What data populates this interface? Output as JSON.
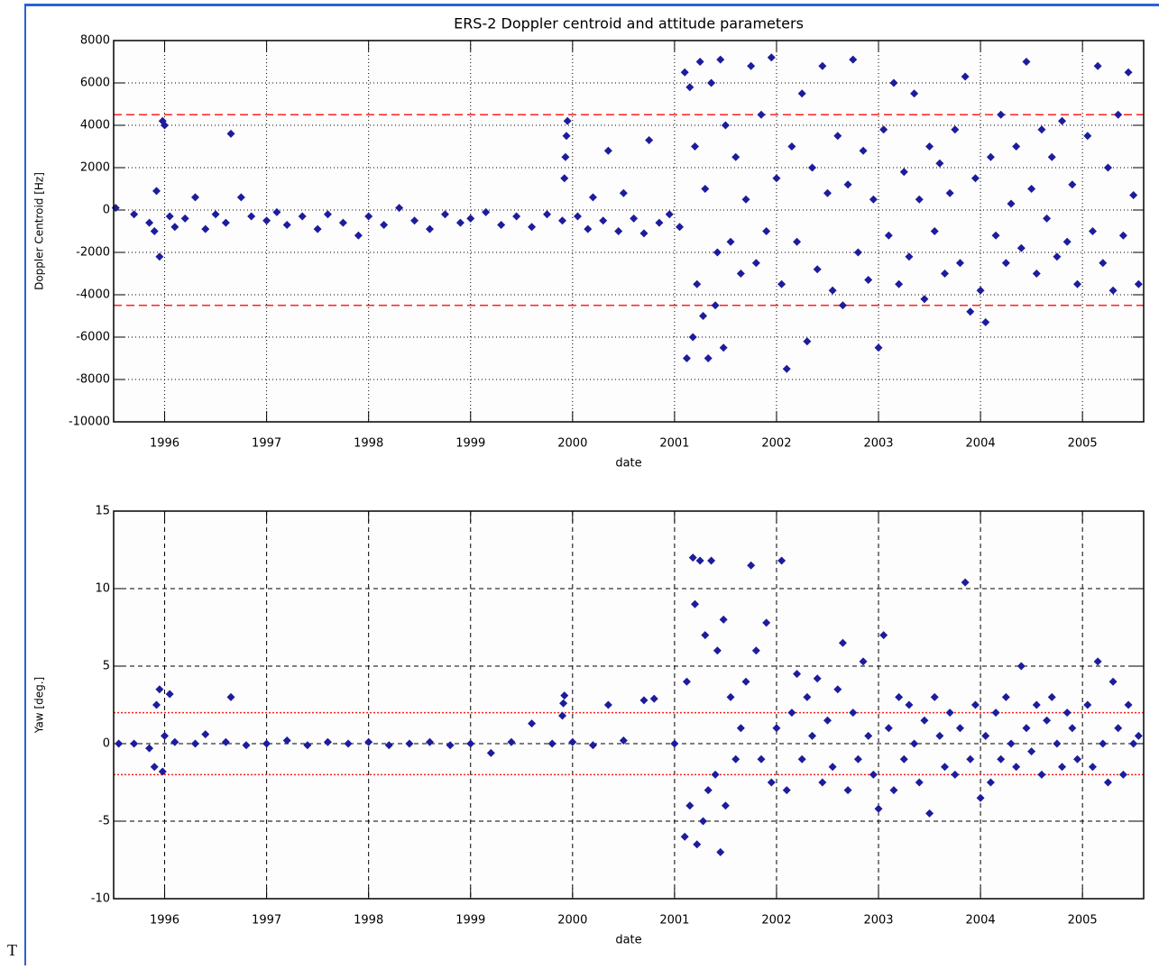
{
  "chart_data": [
    {
      "type": "scatter",
      "title": "ERS-2 Doppler centroid and attitude parameters",
      "xlabel": "date",
      "ylabel": "Doppler Centroid [Hz]",
      "x": [
        1995.52,
        1995.7,
        1995.85,
        1995.9,
        1995.92,
        1995.95,
        1995.98,
        1996.0,
        1996.05,
        1996.1,
        1996.2,
        1996.3,
        1996.4,
        1996.5,
        1996.6,
        1996.65,
        1996.75,
        1996.85,
        1997.0,
        1997.1,
        1997.2,
        1997.35,
        1997.5,
        1997.6,
        1997.75,
        1997.9,
        1998.0,
        1998.15,
        1998.3,
        1998.45,
        1998.6,
        1998.75,
        1998.9,
        1999.0,
        1999.15,
        1999.3,
        1999.45,
        1999.6,
        1999.75,
        1999.9,
        1999.92,
        1999.93,
        1999.94,
        1999.95,
        2000.05,
        2000.15,
        2000.2,
        2000.3,
        2000.35,
        2000.45,
        2000.5,
        2000.6,
        2000.7,
        2000.75,
        2000.85,
        2000.95,
        2001.05,
        2001.1,
        2001.12,
        2001.15,
        2001.18,
        2001.2,
        2001.22,
        2001.25,
        2001.28,
        2001.3,
        2001.33,
        2001.36,
        2001.4,
        2001.42,
        2001.45,
        2001.48,
        2001.5,
        2001.55,
        2001.6,
        2001.65,
        2001.7,
        2001.75,
        2001.8,
        2001.85,
        2001.9,
        2001.95,
        2002.0,
        2002.05,
        2002.1,
        2002.15,
        2002.2,
        2002.25,
        2002.3,
        2002.35,
        2002.4,
        2002.45,
        2002.5,
        2002.55,
        2002.6,
        2002.65,
        2002.7,
        2002.75,
        2002.8,
        2002.85,
        2002.9,
        2002.95,
        2003.0,
        2003.05,
        2003.1,
        2003.15,
        2003.2,
        2003.25,
        2003.3,
        2003.35,
        2003.4,
        2003.45,
        2003.5,
        2003.55,
        2003.6,
        2003.65,
        2003.7,
        2003.75,
        2003.8,
        2003.85,
        2003.9,
        2003.95,
        2004.0,
        2004.05,
        2004.1,
        2004.15,
        2004.2,
        2004.25,
        2004.3,
        2004.35,
        2004.4,
        2004.45,
        2004.5,
        2004.55,
        2004.6,
        2004.65,
        2004.7,
        2004.75,
        2004.8,
        2004.85,
        2004.9,
        2004.95,
        2005.05,
        2005.1,
        2005.15,
        2005.2,
        2005.25,
        2005.3,
        2005.35,
        2005.4,
        2005.45,
        2005.5,
        2005.55
      ],
      "values": [
        100,
        -200,
        -600,
        -1000,
        900,
        -2200,
        4200,
        4000,
        -300,
        -800,
        -400,
        600,
        -900,
        -200,
        -600,
        3600,
        600,
        -300,
        -500,
        -100,
        -700,
        -300,
        -900,
        -200,
        -600,
        -1200,
        -300,
        -700,
        100,
        -500,
        -900,
        -200,
        -600,
        -400,
        -100,
        -700,
        -300,
        -800,
        -200,
        -500,
        1500,
        2500,
        3500,
        4200,
        -300,
        -900,
        600,
        -500,
        2800,
        -1000,
        800,
        -400,
        -1100,
        3300,
        -600,
        -200,
        -800,
        6500,
        -7000,
        5800,
        -6000,
        3000,
        -3500,
        7000,
        -5000,
        1000,
        -7000,
        6000,
        -4500,
        -2000,
        7100,
        -6500,
        4000,
        -1500,
        2500,
        -3000,
        500,
        6800,
        -2500,
        4500,
        -1000,
        7200,
        1500,
        -3500,
        -7500,
        3000,
        -1500,
        5500,
        -6200,
        2000,
        -2800,
        6800,
        800,
        -3800,
        3500,
        -4500,
        1200,
        7100,
        -2000,
        2800,
        -3300,
        500,
        -6500,
        3800,
        -1200,
        6000,
        -3500,
        1800,
        -2200,
        5500,
        500,
        -4200,
        3000,
        -1000,
        2200,
        -3000,
        800,
        3800,
        -2500,
        6300,
        -4800,
        1500,
        -3800,
        -5300,
        2500,
        -1200,
        4500,
        -2500,
        300,
        3000,
        -1800,
        7000,
        1000,
        -3000,
        3800,
        -400,
        2500,
        -2200,
        4200,
        -1500,
        1200,
        -3500,
        3500,
        -1000,
        6800,
        -2500,
        2000,
        -3800,
        4500,
        -1200,
        6500,
        700,
        -3500
      ],
      "color": "#1c1c9c",
      "xlim": [
        1995.5,
        2005.6
      ],
      "ylim": [
        -10000,
        8000
      ],
      "xticks": [
        1996,
        1997,
        1998,
        1999,
        2000,
        2001,
        2002,
        2003,
        2004,
        2005
      ],
      "yticks": [
        -10000,
        -8000,
        -6000,
        -4000,
        -2000,
        0,
        2000,
        4000,
        6000,
        8000
      ],
      "grid": true,
      "grid_style": "dotted",
      "reference_lines": [
        -4500,
        4500
      ],
      "reference_color": "#ff2020",
      "reference_style": "dashed"
    },
    {
      "type": "scatter",
      "xlabel": "date",
      "ylabel": "Yaw [deg.]",
      "x": [
        1995.55,
        1995.7,
        1995.85,
        1995.9,
        1995.92,
        1995.95,
        1995.98,
        1996.0,
        1996.05,
        1996.1,
        1996.3,
        1996.4,
        1996.6,
        1996.65,
        1996.8,
        1997.0,
        1997.2,
        1997.4,
        1997.6,
        1997.8,
        1998.0,
        1998.2,
        1998.4,
        1998.6,
        1998.8,
        1999.0,
        1999.2,
        1999.4,
        1999.6,
        1999.8,
        1999.9,
        1999.91,
        1999.92,
        2000.0,
        2000.2,
        2000.35,
        2000.5,
        2000.7,
        2000.8,
        2001.0,
        2001.1,
        2001.12,
        2001.15,
        2001.18,
        2001.2,
        2001.22,
        2001.25,
        2001.28,
        2001.3,
        2001.33,
        2001.36,
        2001.4,
        2001.42,
        2001.45,
        2001.48,
        2001.5,
        2001.55,
        2001.6,
        2001.65,
        2001.7,
        2001.75,
        2001.8,
        2001.85,
        2001.9,
        2001.95,
        2002.0,
        2002.05,
        2002.1,
        2002.15,
        2002.2,
        2002.25,
        2002.3,
        2002.35,
        2002.4,
        2002.45,
        2002.5,
        2002.55,
        2002.6,
        2002.65,
        2002.7,
        2002.75,
        2002.8,
        2002.85,
        2002.9,
        2002.95,
        2003.0,
        2003.05,
        2003.1,
        2003.15,
        2003.2,
        2003.25,
        2003.3,
        2003.35,
        2003.4,
        2003.45,
        2003.5,
        2003.55,
        2003.6,
        2003.65,
        2003.7,
        2003.75,
        2003.8,
        2003.85,
        2003.9,
        2003.95,
        2004.0,
        2004.05,
        2004.1,
        2004.15,
        2004.2,
        2004.25,
        2004.3,
        2004.35,
        2004.4,
        2004.45,
        2004.5,
        2004.55,
        2004.6,
        2004.65,
        2004.7,
        2004.75,
        2004.8,
        2004.85,
        2004.9,
        2004.95,
        2005.05,
        2005.1,
        2005.15,
        2005.2,
        2005.25,
        2005.3,
        2005.35,
        2005.4,
        2005.45,
        2005.5,
        2005.55
      ],
      "values": [
        0,
        0,
        -0.3,
        -1.5,
        2.5,
        3.5,
        -1.8,
        0.5,
        3.2,
        0.1,
        0,
        0.6,
        0.1,
        3,
        -0.1,
        0,
        0.2,
        -0.1,
        0.1,
        0,
        0.1,
        -0.1,
        0,
        0.1,
        -0.1,
        0,
        -0.6,
        0.1,
        1.3,
        0,
        1.8,
        2.6,
        3.1,
        0.1,
        -0.1,
        2.5,
        0.2,
        2.8,
        2.9,
        0,
        -6,
        4,
        -4,
        12,
        9,
        -6.5,
        11.8,
        -5,
        7,
        -3,
        11.8,
        -2,
        6,
        -7,
        8,
        -4,
        3,
        -1,
        1,
        4,
        11.5,
        6,
        -1,
        7.8,
        -2.5,
        1,
        11.8,
        -3,
        2,
        4.5,
        -1,
        3,
        0.5,
        4.2,
        -2.5,
        1.5,
        -1.5,
        3.5,
        6.5,
        -3,
        2,
        -1,
        5.3,
        0.5,
        -2,
        -4.2,
        7,
        1,
        -3,
        3,
        -1,
        2.5,
        0,
        -2.5,
        1.5,
        -4.5,
        3,
        0.5,
        -1.5,
        2,
        -2,
        1,
        10.4,
        -1,
        2.5,
        -3.5,
        0.5,
        -2.5,
        2,
        -1,
        3,
        0,
        -1.5,
        5,
        1,
        -0.5,
        2.5,
        -2,
        1.5,
        3,
        0,
        -1.5,
        2,
        1,
        -1,
        2.5,
        -1.5,
        5.3,
        0,
        -2.5,
        4,
        1,
        -2,
        2.5,
        0,
        0.5
      ],
      "color": "#1c1c9c",
      "xlim": [
        1995.5,
        2005.6
      ],
      "ylim": [
        -10,
        15
      ],
      "xticks": [
        1996,
        1997,
        1998,
        1999,
        2000,
        2001,
        2002,
        2003,
        2004,
        2005
      ],
      "yticks": [
        -10,
        -5,
        0,
        5,
        10,
        15
      ],
      "grid": true,
      "grid_style": "dashed",
      "reference_lines": [
        -2,
        2
      ],
      "reference_color": "#ff2020",
      "reference_style": "dotted"
    }
  ],
  "page": {
    "fragment": "T"
  }
}
